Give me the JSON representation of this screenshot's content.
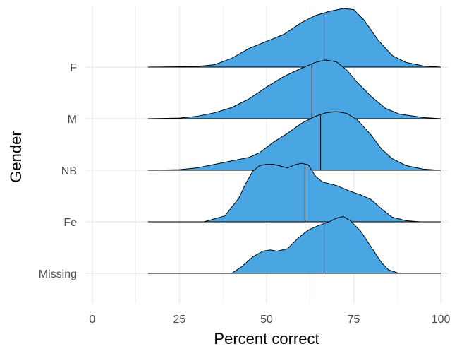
{
  "chart_data": {
    "type": "ridgeline",
    "title": "",
    "xlabel": "Percent correct",
    "ylabel": "Gender",
    "xlim": [
      -2,
      102
    ],
    "x_ticks": [
      0,
      25,
      50,
      75,
      100
    ],
    "x_tick_labels": [
      "0",
      "25",
      "50",
      "75",
      "100"
    ],
    "categories": [
      "F",
      "M",
      "NB",
      "Fe",
      "Missing"
    ],
    "grid": true,
    "fill_color": "#4aa5e3",
    "x_range": [
      16,
      100
    ],
    "series": [
      {
        "name": "F",
        "median": 66.5,
        "density": [
          [
            16,
            0
          ],
          [
            30,
            0.01
          ],
          [
            35,
            0.04
          ],
          [
            40,
            0.15
          ],
          [
            45,
            0.32
          ],
          [
            50,
            0.44
          ],
          [
            55,
            0.56
          ],
          [
            60,
            0.76
          ],
          [
            64,
            0.88
          ],
          [
            68,
            0.95
          ],
          [
            72,
            1.0
          ],
          [
            75,
            0.98
          ],
          [
            78,
            0.8
          ],
          [
            82,
            0.46
          ],
          [
            86,
            0.2
          ],
          [
            90,
            0.08
          ],
          [
            95,
            0.02
          ],
          [
            100,
            0
          ]
        ]
      },
      {
        "name": "M",
        "median": 63,
        "density": [
          [
            16,
            0
          ],
          [
            25,
            0.01
          ],
          [
            30,
            0.04
          ],
          [
            35,
            0.1
          ],
          [
            40,
            0.19
          ],
          [
            45,
            0.34
          ],
          [
            50,
            0.54
          ],
          [
            55,
            0.72
          ],
          [
            60,
            0.86
          ],
          [
            64,
            0.96
          ],
          [
            67,
            1.0
          ],
          [
            70,
            0.97
          ],
          [
            73,
            0.83
          ],
          [
            76,
            0.62
          ],
          [
            80,
            0.38
          ],
          [
            84,
            0.18
          ],
          [
            88,
            0.08
          ],
          [
            95,
            0.02
          ],
          [
            100,
            0
          ]
        ]
      },
      {
        "name": "NB",
        "median": 65.5,
        "density": [
          [
            16,
            0
          ],
          [
            25,
            0.01
          ],
          [
            30,
            0.04
          ],
          [
            35,
            0.1
          ],
          [
            40,
            0.16
          ],
          [
            45,
            0.22
          ],
          [
            48,
            0.3
          ],
          [
            52,
            0.48
          ],
          [
            56,
            0.63
          ],
          [
            60,
            0.8
          ],
          [
            64,
            0.92
          ],
          [
            67,
            0.98
          ],
          [
            70,
            1.0
          ],
          [
            73,
            0.97
          ],
          [
            76,
            0.86
          ],
          [
            80,
            0.6
          ],
          [
            83,
            0.36
          ],
          [
            86,
            0.2
          ],
          [
            90,
            0.08
          ],
          [
            95,
            0.02
          ],
          [
            100,
            0
          ]
        ]
      },
      {
        "name": "Fe",
        "median": 61,
        "density": [
          [
            16,
            0
          ],
          [
            32,
            0
          ],
          [
            38,
            0.1
          ],
          [
            42,
            0.4
          ],
          [
            44,
            0.65
          ],
          [
            46,
            0.86
          ],
          [
            48,
            0.96
          ],
          [
            50,
            0.98
          ],
          [
            52,
            0.98
          ],
          [
            54,
            0.95
          ],
          [
            56,
            0.92
          ],
          [
            58,
            0.97
          ],
          [
            60,
            1.0
          ],
          [
            62,
            0.97
          ],
          [
            64,
            0.78
          ],
          [
            66,
            0.68
          ],
          [
            70,
            0.62
          ],
          [
            74,
            0.52
          ],
          [
            77,
            0.46
          ],
          [
            80,
            0.38
          ],
          [
            83,
            0.22
          ],
          [
            86,
            0.08
          ],
          [
            90,
            0.02
          ],
          [
            94,
            0
          ],
          [
            100,
            0
          ]
        ]
      },
      {
        "name": "Missing",
        "median": 66.5,
        "density": [
          [
            16,
            0
          ],
          [
            40,
            0
          ],
          [
            43,
            0.12
          ],
          [
            46,
            0.28
          ],
          [
            49,
            0.38
          ],
          [
            51,
            0.4
          ],
          [
            53,
            0.38
          ],
          [
            56,
            0.42
          ],
          [
            59,
            0.6
          ],
          [
            62,
            0.74
          ],
          [
            65,
            0.82
          ],
          [
            68,
            0.88
          ],
          [
            70,
            0.94
          ],
          [
            72,
            0.97
          ],
          [
            74,
            0.9
          ],
          [
            77,
            0.72
          ],
          [
            80,
            0.45
          ],
          [
            83,
            0.18
          ],
          [
            85,
            0.06
          ],
          [
            88,
            0
          ],
          [
            100,
            0
          ]
        ]
      }
    ]
  }
}
